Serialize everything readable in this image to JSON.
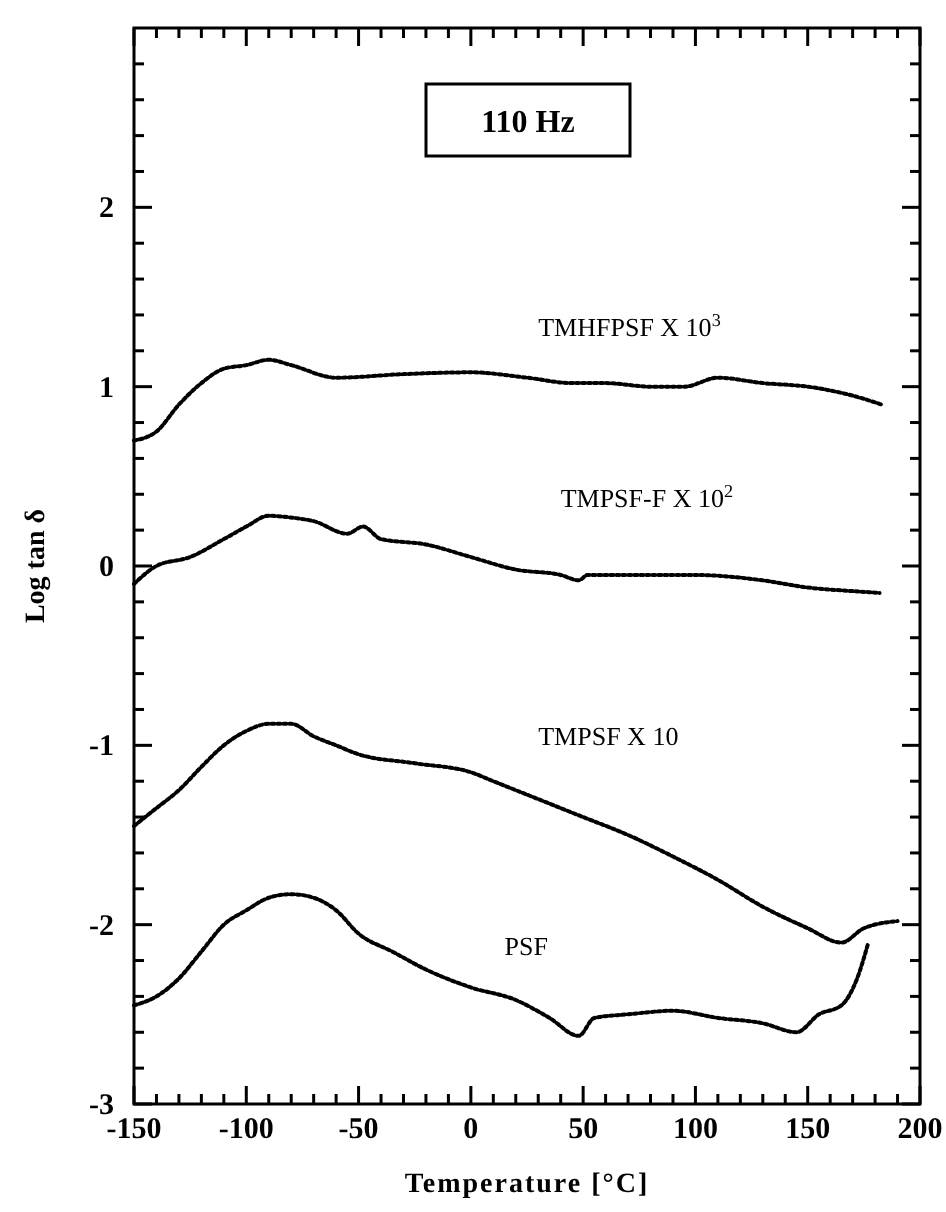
{
  "chart_data": {
    "type": "line",
    "xlabel": "Temperature [°C]",
    "ylabel": "Log tan δ",
    "annotations": [
      "110 Hz"
    ],
    "marker": "none",
    "line_style": "dotted",
    "grid": false,
    "xlim": [
      -150,
      200
    ],
    "ylim": [
      -3,
      3
    ],
    "xticks": [
      -150,
      {
        "value": -140,
        "label": null
      },
      {
        "value": -130,
        "label": null
      },
      {
        "value": -120,
        "label": null
      },
      {
        "value": -110,
        "label": null
      },
      -100,
      {
        "value": -90,
        "label": null
      },
      {
        "value": -80,
        "label": null
      },
      {
        "value": -70,
        "label": null
      },
      {
        "value": -60,
        "label": null
      },
      -50,
      {
        "value": -40,
        "label": null
      },
      {
        "value": -30,
        "label": null
      },
      {
        "value": -20,
        "label": null
      },
      {
        "value": -10,
        "label": null
      },
      0,
      {
        "value": 10,
        "label": null
      },
      {
        "value": 20,
        "label": null
      },
      {
        "value": 30,
        "label": null
      },
      {
        "value": 40,
        "label": null
      },
      50,
      {
        "value": 60,
        "label": null
      },
      {
        "value": 70,
        "label": null
      },
      {
        "value": 80,
        "label": null
      },
      {
        "value": 90,
        "label": null
      },
      100,
      {
        "value": 110,
        "label": null
      },
      {
        "value": 120,
        "label": null
      },
      {
        "value": 130,
        "label": null
      },
      {
        "value": 140,
        "label": null
      },
      150,
      {
        "value": 160,
        "label": null
      },
      {
        "value": 170,
        "label": null
      },
      {
        "value": 180,
        "label": null
      },
      {
        "value": 190,
        "label": null
      },
      200
    ],
    "yticks": [
      -3,
      {
        "value": -2.8,
        "label": null
      },
      {
        "value": -2.6,
        "label": null
      },
      {
        "value": -2.4,
        "label": null
      },
      {
        "value": -2.2,
        "label": null
      },
      -2,
      {
        "value": -1.8,
        "label": null
      },
      {
        "value": -1.6,
        "label": null
      },
      {
        "value": -1.4,
        "label": null
      },
      {
        "value": -1.2,
        "label": null
      },
      -1,
      {
        "value": -0.8,
        "label": null
      },
      {
        "value": -0.6,
        "label": null
      },
      {
        "value": -0.4,
        "label": null
      },
      {
        "value": -0.2,
        "label": null
      },
      0,
      {
        "value": 0.2,
        "label": null
      },
      {
        "value": 0.4,
        "label": null
      },
      {
        "value": 0.6,
        "label": null
      },
      {
        "value": 0.8,
        "label": null
      },
      1,
      {
        "value": 1.2,
        "label": null
      },
      {
        "value": 1.4,
        "label": null
      },
      {
        "value": 1.6,
        "label": null
      },
      {
        "value": 1.8,
        "label": null
      },
      2,
      {
        "value": 2.2,
        "label": null
      },
      {
        "value": 2.4,
        "label": null
      },
      {
        "value": 2.6,
        "label": null
      },
      {
        "value": 2.8,
        "label": null
      }
    ],
    "series": [
      {
        "name": "TMHFPSF X 10$^{3}$",
        "color": "#000000",
        "x": [
          -150,
          -140,
          -130,
          -120,
          -110,
          -100,
          -90,
          -80,
          -60,
          -30,
          0,
          25,
          45,
          60,
          80,
          95,
          110,
          130,
          150,
          170,
          183
        ],
        "values": [
          0.7,
          0.75,
          0.9,
          1.02,
          1.1,
          1.12,
          1.15,
          1.12,
          1.05,
          1.07,
          1.08,
          1.05,
          1.02,
          1.02,
          1.0,
          1.0,
          1.05,
          1.02,
          1.0,
          0.95,
          0.9
        ]
      },
      {
        "name": "TMPSF-F X 10$^{2}$",
        "color": "#000000",
        "x": [
          -150,
          -140,
          -125,
          -110,
          -100,
          -90,
          -80,
          -70,
          -55,
          -48,
          -40,
          -20,
          0,
          20,
          40,
          48,
          52,
          70,
          100,
          130,
          150,
          170,
          182
        ],
        "values": [
          -0.1,
          0.0,
          0.05,
          0.15,
          0.22,
          0.28,
          0.27,
          0.25,
          0.18,
          0.22,
          0.15,
          0.12,
          0.05,
          -0.02,
          -0.05,
          -0.08,
          -0.05,
          -0.05,
          -0.05,
          -0.08,
          -0.12,
          -0.14,
          -0.15
        ]
      },
      {
        "name": "TMPSF X 10",
        "color": "#000000",
        "x": [
          -150,
          -140,
          -130,
          -120,
          -110,
          -100,
          -90,
          -80,
          -70,
          -60,
          -50,
          -25,
          0,
          10,
          30,
          50,
          70,
          90,
          110,
          130,
          150,
          165,
          175,
          190
        ],
        "values": [
          -1.45,
          -1.35,
          -1.25,
          -1.12,
          -1.0,
          -0.92,
          -0.88,
          -0.88,
          -0.95,
          -1.0,
          -1.05,
          -1.1,
          -1.15,
          -1.2,
          -1.3,
          -1.4,
          -1.5,
          -1.62,
          -1.75,
          -1.9,
          -2.02,
          -2.1,
          -2.02,
          -1.98
        ]
      },
      {
        "name": "PSF",
        "color": "#000000",
        "x": [
          -150,
          -140,
          -130,
          -120,
          -110,
          -100,
          -90,
          -80,
          -70,
          -60,
          -50,
          -35,
          -20,
          0,
          20,
          35,
          48,
          55,
          70,
          90,
          110,
          130,
          145,
          155,
          165,
          172,
          177
        ],
        "values": [
          -2.45,
          -2.4,
          -2.3,
          -2.15,
          -2.0,
          -1.92,
          -1.85,
          -1.83,
          -1.85,
          -1.92,
          -2.05,
          -2.15,
          -2.25,
          -2.35,
          -2.42,
          -2.52,
          -2.62,
          -2.52,
          -2.5,
          -2.48,
          -2.52,
          -2.55,
          -2.6,
          -2.5,
          -2.45,
          -2.3,
          -2.1
        ]
      }
    ]
  }
}
